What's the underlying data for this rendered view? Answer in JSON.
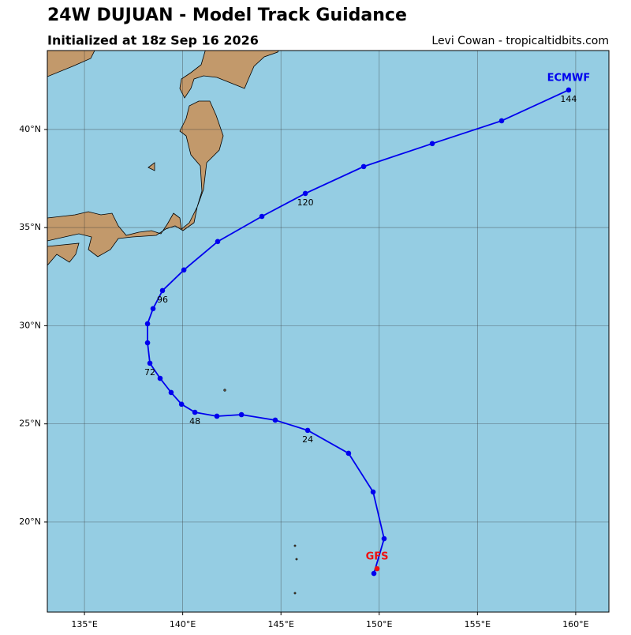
{
  "chart_data": {
    "type": "line",
    "title": "24W DUJUAN - Model Track Guidance",
    "subtitle": "Initialized at 18z Sep 16 2026",
    "credit": "Levi Cowan - tropicaltidbits.com",
    "xlim": [
      133.11,
      161.69
    ],
    "ylim": [
      15.41,
      44.02
    ],
    "xticks": [
      {
        "value": 135,
        "label": "135°E"
      },
      {
        "value": 140,
        "label": "140°E"
      },
      {
        "value": 145,
        "label": "145°E"
      },
      {
        "value": 150,
        "label": "150°E"
      },
      {
        "value": 155,
        "label": "155°E"
      },
      {
        "value": 160,
        "label": "160°E"
      }
    ],
    "yticks": [
      {
        "value": 20,
        "label": "20°N"
      },
      {
        "value": 25,
        "label": "25°N"
      },
      {
        "value": 30,
        "label": "30°N"
      },
      {
        "value": 35,
        "label": "35°N"
      },
      {
        "value": 40,
        "label": "40°N"
      }
    ],
    "grid": true,
    "series": [
      {
        "name": "ECMWF",
        "color": "#0000ee",
        "x": [
          149.73,
          150.25,
          149.69,
          148.44,
          146.36,
          144.71,
          142.99,
          141.74,
          140.62,
          139.94,
          139.41,
          138.85,
          138.33,
          138.21,
          138.21,
          138.49,
          138.97,
          140.06,
          141.78,
          144.03,
          146.24,
          149.21,
          152.7,
          156.23,
          159.64
        ],
        "values": [
          17.38,
          19.15,
          21.53,
          23.5,
          24.67,
          25.19,
          25.47,
          25.39,
          25.59,
          26.0,
          26.6,
          27.32,
          28.09,
          29.13,
          30.1,
          30.87,
          31.79,
          32.84,
          34.29,
          35.57,
          36.74,
          38.11,
          39.28,
          40.44,
          42.01
        ],
        "hour_labels": [
          null,
          null,
          null,
          null,
          24,
          null,
          null,
          null,
          48,
          null,
          null,
          null,
          72,
          null,
          null,
          null,
          96,
          null,
          null,
          null,
          120,
          null,
          null,
          null,
          144
        ]
      },
      {
        "name": "GFS",
        "color": "#ee1111",
        "x": [
          149.89
        ],
        "values": [
          17.62
        ]
      }
    ]
  }
}
